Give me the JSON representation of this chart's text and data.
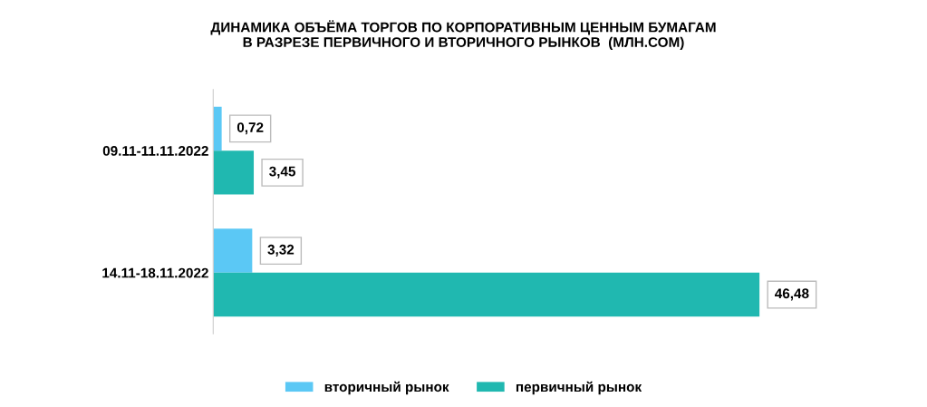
{
  "chart_data": {
    "type": "bar",
    "orientation": "horizontal",
    "title": "ДИНАМИКА ОБЪЁМА ТОРГОВ ПО КОРПОРАТИВНЫМ ЦЕННЫМ БУМАГАМ\nВ РАЗРЕЗЕ ПЕРВИЧНОГО И ВТОРИЧНОГО РЫНКОВ  (МЛН.СОМ)",
    "categories": [
      "09.11-11.11.2022",
      "14.11-18.11.2022"
    ],
    "series": [
      {
        "name": "вторичный рынок",
        "color": "#5bc8f5",
        "values": [
          0.72,
          3.32
        ],
        "value_labels": [
          "0,72",
          "3,32"
        ]
      },
      {
        "name": "первичный рынок",
        "color": "#20b8b0",
        "values": [
          3.45,
          46.48
        ],
        "value_labels": [
          "3,45",
          "46,48"
        ]
      }
    ],
    "legend": "bottom",
    "tick_labels": "y"
  }
}
